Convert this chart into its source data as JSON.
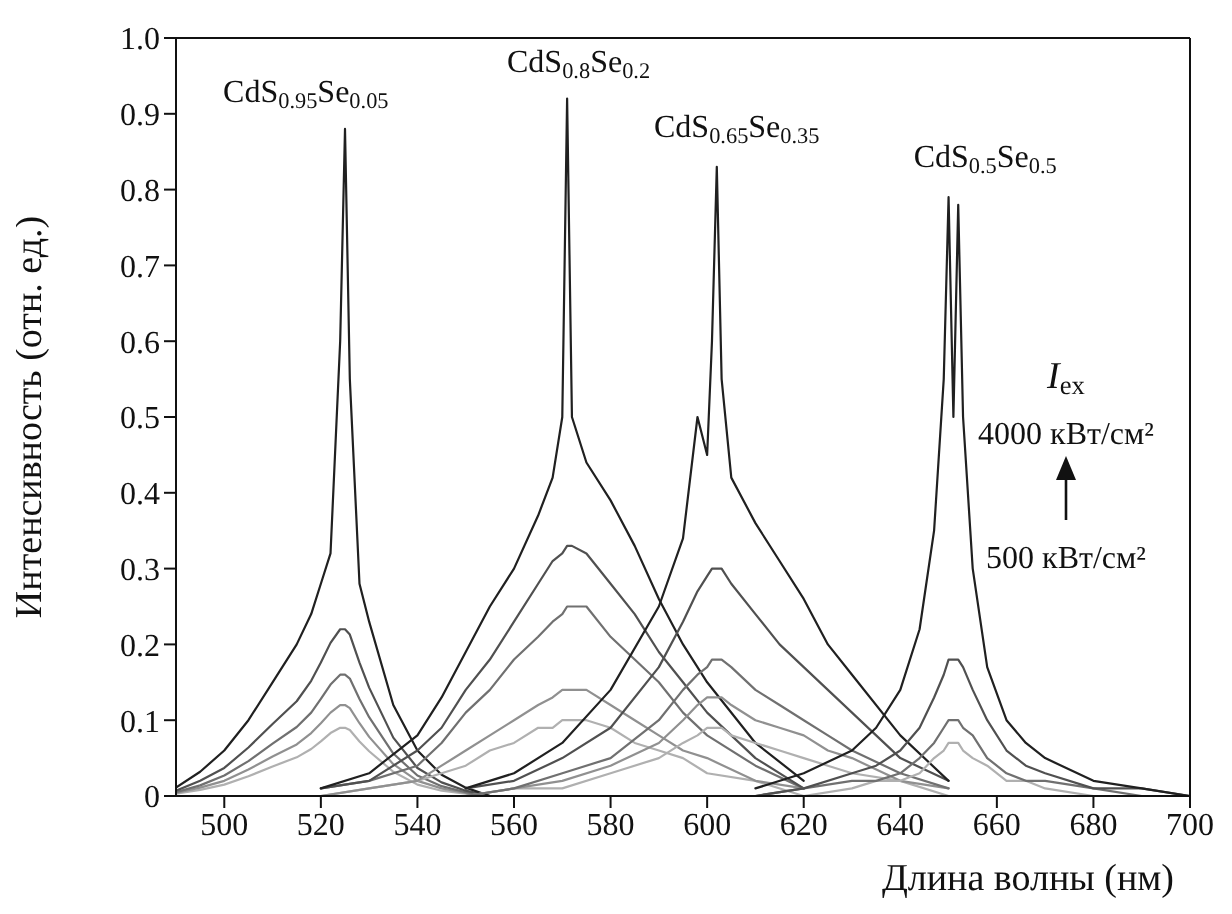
{
  "chart_data": {
    "type": "line",
    "xlabel": "Длина волны (нм)",
    "ylabel": "Интенсивность (отн. ед.)",
    "xlim": [
      490,
      700
    ],
    "xticks": [
      500,
      520,
      540,
      560,
      580,
      600,
      620,
      640,
      660,
      680,
      700
    ],
    "ylim": [
      0,
      1
    ],
    "yticks": [
      0,
      0.1,
      0.2,
      0.3,
      0.4,
      0.5,
      0.6,
      0.7,
      0.8,
      0.9,
      {
        "value": 1,
        "label": "1.0"
      }
    ],
    "marker": "none",
    "line_style": "solid",
    "series": [
      {
        "color": "#b0b0b0",
        "x": [
          490,
          495,
          500,
          505,
          510,
          515,
          518,
          520,
          522,
          524,
          525,
          526,
          528,
          530,
          535,
          540,
          545,
          550,
          555
        ],
        "values": [
          0.003,
          0.008,
          0.015,
          0.026,
          0.039,
          0.051,
          0.062,
          0.072,
          0.083,
          0.09,
          0.09,
          0.087,
          0.072,
          0.059,
          0.032,
          0.015,
          0.007,
          0.003,
          0
        ]
      },
      {
        "color": "#909090",
        "x": [
          490,
          495,
          500,
          505,
          510,
          515,
          518,
          520,
          522,
          524,
          525,
          526,
          528,
          530,
          535,
          540,
          545,
          550,
          555
        ],
        "values": [
          0.004,
          0.011,
          0.02,
          0.035,
          0.052,
          0.068,
          0.083,
          0.096,
          0.11,
          0.12,
          0.12,
          0.116,
          0.096,
          0.078,
          0.042,
          0.02,
          0.01,
          0.004,
          0
        ]
      },
      {
        "color": "#707070",
        "x": [
          490,
          495,
          500,
          505,
          510,
          515,
          518,
          520,
          522,
          524,
          525,
          526,
          528,
          530,
          535,
          540,
          545,
          550,
          555
        ],
        "values": [
          0.005,
          0.014,
          0.027,
          0.046,
          0.069,
          0.091,
          0.11,
          0.128,
          0.147,
          0.16,
          0.16,
          0.155,
          0.128,
          0.104,
          0.056,
          0.027,
          0.013,
          0.005,
          0
        ]
      },
      {
        "color": "#505050",
        "x": [
          490,
          495,
          500,
          505,
          510,
          515,
          518,
          520,
          522,
          524,
          525,
          526,
          528,
          530,
          535,
          540,
          545,
          550,
          555
        ],
        "values": [
          0.007,
          0.02,
          0.037,
          0.064,
          0.095,
          0.125,
          0.152,
          0.176,
          0.202,
          0.22,
          0.22,
          0.213,
          0.176,
          0.143,
          0.077,
          0.037,
          0.018,
          0.007,
          0
        ]
      },
      {
        "color": "#202020",
        "x": [
          490,
          495,
          500,
          505,
          510,
          515,
          518,
          520,
          522,
          524,
          525,
          526,
          528,
          530,
          535,
          540,
          545,
          550,
          555
        ],
        "values": [
          0.011,
          0.032,
          0.06,
          0.1,
          0.15,
          0.2,
          0.24,
          0.28,
          0.32,
          0.6,
          0.88,
          0.55,
          0.28,
          0.23,
          0.12,
          0.06,
          0.028,
          0.011,
          0
        ]
      },
      {
        "color": "#b0b0b0",
        "x": [
          520,
          530,
          540,
          545,
          550,
          555,
          560,
          565,
          568,
          570,
          571,
          572,
          575,
          580,
          585,
          590,
          595,
          600,
          610,
          620
        ],
        "values": [
          0,
          0.01,
          0.02,
          0.03,
          0.04,
          0.06,
          0.07,
          0.09,
          0.09,
          0.1,
          0.1,
          0.1,
          0.1,
          0.09,
          0.07,
          0.06,
          0.05,
          0.03,
          0.02,
          0
        ]
      },
      {
        "color": "#909090",
        "x": [
          520,
          530,
          540,
          545,
          550,
          555,
          560,
          565,
          568,
          570,
          571,
          572,
          575,
          580,
          585,
          590,
          595,
          600,
          610,
          620
        ],
        "values": [
          0,
          0.01,
          0.02,
          0.04,
          0.06,
          0.08,
          0.1,
          0.12,
          0.13,
          0.14,
          0.14,
          0.14,
          0.14,
          0.12,
          0.1,
          0.08,
          0.06,
          0.05,
          0.02,
          0.01
        ]
      },
      {
        "color": "#707070",
        "x": [
          520,
          530,
          540,
          545,
          550,
          555,
          560,
          565,
          568,
          570,
          571,
          572,
          575,
          580,
          585,
          590,
          595,
          600,
          610,
          620
        ],
        "values": [
          0.01,
          0.02,
          0.04,
          0.07,
          0.11,
          0.14,
          0.18,
          0.21,
          0.23,
          0.24,
          0.25,
          0.25,
          0.25,
          0.21,
          0.18,
          0.15,
          0.11,
          0.08,
          0.04,
          0.01
        ]
      },
      {
        "color": "#505050",
        "x": [
          520,
          530,
          540,
          545,
          550,
          555,
          560,
          565,
          568,
          570,
          571,
          572,
          575,
          580,
          585,
          590,
          595,
          600,
          610,
          620
        ],
        "values": [
          0.01,
          0.02,
          0.06,
          0.09,
          0.14,
          0.18,
          0.23,
          0.28,
          0.31,
          0.32,
          0.33,
          0.33,
          0.32,
          0.28,
          0.24,
          0.19,
          0.15,
          0.11,
          0.05,
          0.01
        ]
      },
      {
        "color": "#202020",
        "x": [
          520,
          530,
          540,
          545,
          550,
          555,
          560,
          565,
          568,
          570,
          571,
          572,
          575,
          580,
          585,
          590,
          595,
          600,
          610,
          620
        ],
        "values": [
          0.01,
          0.03,
          0.08,
          0.13,
          0.19,
          0.25,
          0.3,
          0.37,
          0.42,
          0.5,
          0.92,
          0.5,
          0.44,
          0.39,
          0.33,
          0.26,
          0.2,
          0.15,
          0.07,
          0.02
        ]
      },
      {
        "color": "#b0b0b0",
        "x": [
          550,
          560,
          570,
          580,
          590,
          595,
          598,
          600,
          601,
          602,
          603,
          605,
          610,
          615,
          620,
          625,
          630,
          640,
          650
        ],
        "values": [
          0,
          0.01,
          0.01,
          0.03,
          0.05,
          0.07,
          0.08,
          0.09,
          0.09,
          0.09,
          0.09,
          0.08,
          0.07,
          0.06,
          0.05,
          0.04,
          0.03,
          0.02,
          0
        ]
      },
      {
        "color": "#909090",
        "x": [
          550,
          560,
          570,
          580,
          590,
          595,
          598,
          600,
          601,
          602,
          603,
          605,
          610,
          615,
          620,
          625,
          630,
          640,
          650
        ],
        "values": [
          0,
          0.01,
          0.02,
          0.04,
          0.07,
          0.1,
          0.12,
          0.13,
          0.13,
          0.13,
          0.13,
          0.12,
          0.1,
          0.09,
          0.08,
          0.06,
          0.05,
          0.02,
          0.01
        ]
      },
      {
        "color": "#707070",
        "x": [
          550,
          560,
          570,
          580,
          590,
          595,
          598,
          600,
          601,
          602,
          603,
          605,
          610,
          615,
          620,
          625,
          630,
          640,
          650
        ],
        "values": [
          0,
          0.01,
          0.03,
          0.05,
          0.1,
          0.14,
          0.16,
          0.17,
          0.18,
          0.18,
          0.18,
          0.17,
          0.14,
          0.12,
          0.1,
          0.08,
          0.06,
          0.03,
          0.01
        ]
      },
      {
        "color": "#505050",
        "x": [
          550,
          560,
          570,
          580,
          590,
          595,
          598,
          600,
          601,
          602,
          603,
          605,
          610,
          615,
          620,
          625,
          630,
          640,
          650
        ],
        "values": [
          0.01,
          0.02,
          0.05,
          0.09,
          0.17,
          0.23,
          0.27,
          0.29,
          0.3,
          0.3,
          0.3,
          0.28,
          0.24,
          0.2,
          0.17,
          0.14,
          0.11,
          0.05,
          0.02
        ]
      },
      {
        "color": "#202020",
        "x": [
          550,
          560,
          570,
          580,
          590,
          595,
          598,
          600,
          601,
          602,
          603,
          605,
          610,
          615,
          620,
          625,
          630,
          640,
          650
        ],
        "values": [
          0.01,
          0.03,
          0.07,
          0.14,
          0.25,
          0.34,
          0.5,
          0.45,
          0.6,
          0.83,
          0.55,
          0.42,
          0.36,
          0.31,
          0.26,
          0.2,
          0.16,
          0.08,
          0.02
        ]
      },
      {
        "color": "#b0b0b0",
        "x": [
          610,
          620,
          630,
          635,
          640,
          644,
          647,
          649,
          650,
          651,
          652,
          653,
          655,
          658,
          662,
          666,
          670,
          680,
          690,
          700
        ],
        "values": [
          0,
          0,
          0.01,
          0.02,
          0.02,
          0.03,
          0.05,
          0.06,
          0.07,
          0.07,
          0.07,
          0.06,
          0.05,
          0.04,
          0.02,
          0.02,
          0.01,
          0,
          0,
          0
        ]
      },
      {
        "color": "#707070",
        "x": [
          610,
          620,
          630,
          635,
          640,
          644,
          647,
          649,
          650,
          651,
          652,
          653,
          655,
          658,
          662,
          666,
          670,
          680,
          690,
          700
        ],
        "values": [
          0,
          0.01,
          0.02,
          0.02,
          0.03,
          0.05,
          0.07,
          0.09,
          0.1,
          0.1,
          0.1,
          0.09,
          0.08,
          0.05,
          0.03,
          0.02,
          0.02,
          0.01,
          0,
          0
        ]
      },
      {
        "color": "#505050",
        "x": [
          610,
          620,
          630,
          635,
          640,
          644,
          647,
          649,
          650,
          651,
          652,
          653,
          655,
          658,
          662,
          666,
          670,
          680,
          690,
          700
        ],
        "values": [
          0,
          0.01,
          0.03,
          0.04,
          0.06,
          0.09,
          0.13,
          0.16,
          0.18,
          0.18,
          0.18,
          0.17,
          0.14,
          0.1,
          0.06,
          0.04,
          0.03,
          0.01,
          0.01,
          0
        ]
      },
      {
        "color": "#202020",
        "x": [
          610,
          620,
          630,
          635,
          640,
          644,
          647,
          649,
          650,
          651,
          652,
          653,
          655,
          658,
          662,
          666,
          670,
          680,
          690,
          700
        ],
        "values": [
          0.01,
          0.03,
          0.06,
          0.09,
          0.14,
          0.22,
          0.35,
          0.55,
          0.79,
          0.5,
          0.78,
          0.5,
          0.3,
          0.17,
          0.1,
          0.07,
          0.05,
          0.02,
          0.01,
          0
        ]
      }
    ],
    "annotations": [
      "CdS$_{0.95}$Se$_{0.05}$",
      "CdS$_{0.8}$Se$_{0.2}$",
      "CdS$_{0.65}$Se$_{0.35}$",
      "CdS$_{0.5}$Se$_{0.5}$",
      "I$_{ex}$",
      "4000 кВт/см²",
      "500 кВт/см²"
    ]
  }
}
